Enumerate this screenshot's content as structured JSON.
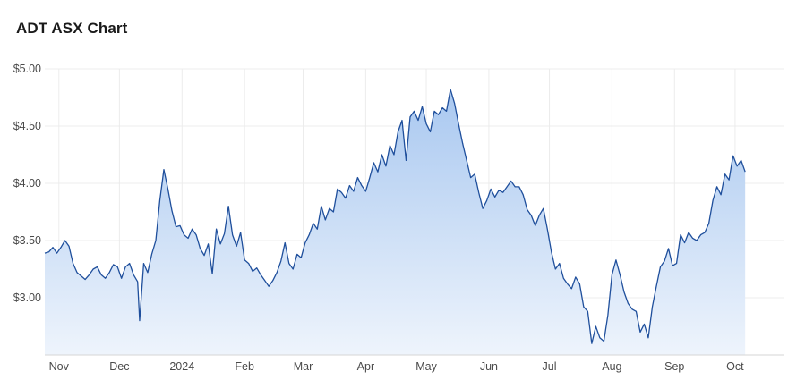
{
  "chart_data": {
    "type": "area",
    "title": "ADT ASX Chart",
    "xlabel": "",
    "ylabel": "",
    "ylim": [
      2.5,
      5.0
    ],
    "y_ticks": [
      {
        "value": 3.0,
        "label": "$3.00"
      },
      {
        "value": 3.5,
        "label": "$3.50"
      },
      {
        "value": 4.0,
        "label": "$4.00"
      },
      {
        "value": 4.5,
        "label": "$4.50"
      },
      {
        "value": 5.0,
        "label": "$5.00"
      }
    ],
    "x_start": "2023-10-25",
    "x_end": "2024-10-25",
    "x_ticks": [
      {
        "date": "2023-11-01",
        "label": "Nov"
      },
      {
        "date": "2023-12-01",
        "label": "Dec"
      },
      {
        "date": "2024-01-01",
        "label": "2024"
      },
      {
        "date": "2024-02-01",
        "label": "Feb"
      },
      {
        "date": "2024-03-01",
        "label": "Mar"
      },
      {
        "date": "2024-04-01",
        "label": "Apr"
      },
      {
        "date": "2024-05-01",
        "label": "May"
      },
      {
        "date": "2024-06-01",
        "label": "Jun"
      },
      {
        "date": "2024-07-01",
        "label": "Jul"
      },
      {
        "date": "2024-08-01",
        "label": "Aug"
      },
      {
        "date": "2024-09-01",
        "label": "Sep"
      },
      {
        "date": "2024-10-01",
        "label": "Oct"
      }
    ],
    "grid": true,
    "legend": "none",
    "colors": {
      "line": "#1f4f9c",
      "fill_top": "#a9c8f0",
      "fill_bottom": "#eef4fc",
      "grid": "#ececec"
    },
    "series": [
      {
        "points": [
          [
            "2023-10-25",
            3.39
          ],
          [
            "2023-10-27",
            3.4
          ],
          [
            "2023-10-29",
            3.44
          ],
          [
            "2023-10-31",
            3.39
          ],
          [
            "2023-11-02",
            3.44
          ],
          [
            "2023-11-04",
            3.5
          ],
          [
            "2023-11-06",
            3.45
          ],
          [
            "2023-11-08",
            3.3
          ],
          [
            "2023-11-10",
            3.22
          ],
          [
            "2023-11-12",
            3.19
          ],
          [
            "2023-11-14",
            3.16
          ],
          [
            "2023-11-16",
            3.2
          ],
          [
            "2023-11-18",
            3.25
          ],
          [
            "2023-11-20",
            3.27
          ],
          [
            "2023-11-22",
            3.2
          ],
          [
            "2023-11-24",
            3.17
          ],
          [
            "2023-11-26",
            3.22
          ],
          [
            "2023-11-28",
            3.29
          ],
          [
            "2023-11-30",
            3.27
          ],
          [
            "2023-12-02",
            3.17
          ],
          [
            "2023-12-04",
            3.27
          ],
          [
            "2023-12-06",
            3.3
          ],
          [
            "2023-12-08",
            3.2
          ],
          [
            "2023-12-10",
            3.14
          ],
          [
            "2023-12-11",
            2.8
          ],
          [
            "2023-12-13",
            3.3
          ],
          [
            "2023-12-15",
            3.22
          ],
          [
            "2023-12-17",
            3.38
          ],
          [
            "2023-12-19",
            3.5
          ],
          [
            "2023-12-21",
            3.85
          ],
          [
            "2023-12-23",
            4.12
          ],
          [
            "2023-12-25",
            3.95
          ],
          [
            "2023-12-27",
            3.76
          ],
          [
            "2023-12-29",
            3.62
          ],
          [
            "2023-12-31",
            3.63
          ],
          [
            "2024-01-02",
            3.55
          ],
          [
            "2024-01-04",
            3.52
          ],
          [
            "2024-01-06",
            3.6
          ],
          [
            "2024-01-08",
            3.55
          ],
          [
            "2024-01-10",
            3.43
          ],
          [
            "2024-01-12",
            3.37
          ],
          [
            "2024-01-14",
            3.47
          ],
          [
            "2024-01-16",
            3.21
          ],
          [
            "2024-01-18",
            3.6
          ],
          [
            "2024-01-20",
            3.47
          ],
          [
            "2024-01-22",
            3.56
          ],
          [
            "2024-01-24",
            3.8
          ],
          [
            "2024-01-26",
            3.55
          ],
          [
            "2024-01-28",
            3.45
          ],
          [
            "2024-01-30",
            3.57
          ],
          [
            "2024-02-01",
            3.33
          ],
          [
            "2024-02-03",
            3.3
          ],
          [
            "2024-02-05",
            3.23
          ],
          [
            "2024-02-07",
            3.26
          ],
          [
            "2024-02-09",
            3.2
          ],
          [
            "2024-02-11",
            3.15
          ],
          [
            "2024-02-13",
            3.1
          ],
          [
            "2024-02-15",
            3.15
          ],
          [
            "2024-02-17",
            3.22
          ],
          [
            "2024-02-19",
            3.32
          ],
          [
            "2024-02-21",
            3.48
          ],
          [
            "2024-02-23",
            3.3
          ],
          [
            "2024-02-25",
            3.25
          ],
          [
            "2024-02-27",
            3.38
          ],
          [
            "2024-02-29",
            3.35
          ],
          [
            "2024-03-02",
            3.48
          ],
          [
            "2024-03-04",
            3.55
          ],
          [
            "2024-03-06",
            3.65
          ],
          [
            "2024-03-08",
            3.6
          ],
          [
            "2024-03-10",
            3.8
          ],
          [
            "2024-03-12",
            3.68
          ],
          [
            "2024-03-14",
            3.78
          ],
          [
            "2024-03-16",
            3.75
          ],
          [
            "2024-03-18",
            3.95
          ],
          [
            "2024-03-20",
            3.92
          ],
          [
            "2024-03-22",
            3.87
          ],
          [
            "2024-03-24",
            3.98
          ],
          [
            "2024-03-26",
            3.93
          ],
          [
            "2024-03-28",
            4.05
          ],
          [
            "2024-03-30",
            3.98
          ],
          [
            "2024-04-01",
            3.93
          ],
          [
            "2024-04-03",
            4.05
          ],
          [
            "2024-04-05",
            4.18
          ],
          [
            "2024-04-07",
            4.1
          ],
          [
            "2024-04-09",
            4.25
          ],
          [
            "2024-04-11",
            4.15
          ],
          [
            "2024-04-13",
            4.33
          ],
          [
            "2024-04-15",
            4.25
          ],
          [
            "2024-04-17",
            4.45
          ],
          [
            "2024-04-19",
            4.55
          ],
          [
            "2024-04-21",
            4.2
          ],
          [
            "2024-04-23",
            4.58
          ],
          [
            "2024-04-25",
            4.63
          ],
          [
            "2024-04-27",
            4.55
          ],
          [
            "2024-04-29",
            4.67
          ],
          [
            "2024-05-01",
            4.52
          ],
          [
            "2024-05-03",
            4.45
          ],
          [
            "2024-05-05",
            4.63
          ],
          [
            "2024-05-07",
            4.6
          ],
          [
            "2024-05-09",
            4.66
          ],
          [
            "2024-05-11",
            4.63
          ],
          [
            "2024-05-13",
            4.82
          ],
          [
            "2024-05-15",
            4.7
          ],
          [
            "2024-05-17",
            4.52
          ],
          [
            "2024-05-19",
            4.35
          ],
          [
            "2024-05-21",
            4.2
          ],
          [
            "2024-05-23",
            4.05
          ],
          [
            "2024-05-25",
            4.08
          ],
          [
            "2024-05-27",
            3.92
          ],
          [
            "2024-05-29",
            3.78
          ],
          [
            "2024-05-31",
            3.85
          ],
          [
            "2024-06-02",
            3.95
          ],
          [
            "2024-06-04",
            3.88
          ],
          [
            "2024-06-06",
            3.94
          ],
          [
            "2024-06-08",
            3.92
          ],
          [
            "2024-06-10",
            3.97
          ],
          [
            "2024-06-12",
            4.02
          ],
          [
            "2024-06-14",
            3.97
          ],
          [
            "2024-06-16",
            3.97
          ],
          [
            "2024-06-18",
            3.9
          ],
          [
            "2024-06-20",
            3.77
          ],
          [
            "2024-06-22",
            3.72
          ],
          [
            "2024-06-24",
            3.63
          ],
          [
            "2024-06-26",
            3.72
          ],
          [
            "2024-06-28",
            3.78
          ],
          [
            "2024-06-30",
            3.6
          ],
          [
            "2024-07-02",
            3.4
          ],
          [
            "2024-07-04",
            3.25
          ],
          [
            "2024-07-06",
            3.3
          ],
          [
            "2024-07-08",
            3.17
          ],
          [
            "2024-07-10",
            3.12
          ],
          [
            "2024-07-12",
            3.08
          ],
          [
            "2024-07-14",
            3.18
          ],
          [
            "2024-07-16",
            3.12
          ],
          [
            "2024-07-18",
            2.92
          ],
          [
            "2024-07-20",
            2.88
          ],
          [
            "2024-07-22",
            2.6
          ],
          [
            "2024-07-24",
            2.75
          ],
          [
            "2024-07-26",
            2.65
          ],
          [
            "2024-07-28",
            2.62
          ],
          [
            "2024-07-30",
            2.85
          ],
          [
            "2024-08-01",
            3.2
          ],
          [
            "2024-08-03",
            3.33
          ],
          [
            "2024-08-05",
            3.2
          ],
          [
            "2024-08-07",
            3.05
          ],
          [
            "2024-08-09",
            2.95
          ],
          [
            "2024-08-11",
            2.9
          ],
          [
            "2024-08-13",
            2.88
          ],
          [
            "2024-08-15",
            2.7
          ],
          [
            "2024-08-17",
            2.77
          ],
          [
            "2024-08-19",
            2.65
          ],
          [
            "2024-08-21",
            2.92
          ],
          [
            "2024-08-23",
            3.1
          ],
          [
            "2024-08-25",
            3.27
          ],
          [
            "2024-08-27",
            3.32
          ],
          [
            "2024-08-29",
            3.43
          ],
          [
            "2024-08-31",
            3.28
          ],
          [
            "2024-09-02",
            3.3
          ],
          [
            "2024-09-04",
            3.55
          ],
          [
            "2024-09-06",
            3.48
          ],
          [
            "2024-09-08",
            3.57
          ],
          [
            "2024-09-10",
            3.52
          ],
          [
            "2024-09-12",
            3.5
          ],
          [
            "2024-09-14",
            3.55
          ],
          [
            "2024-09-16",
            3.57
          ],
          [
            "2024-09-18",
            3.65
          ],
          [
            "2024-09-20",
            3.85
          ],
          [
            "2024-09-22",
            3.97
          ],
          [
            "2024-09-24",
            3.9
          ],
          [
            "2024-09-26",
            4.08
          ],
          [
            "2024-09-28",
            4.03
          ],
          [
            "2024-09-30",
            4.24
          ],
          [
            "2024-10-02",
            4.15
          ],
          [
            "2024-10-04",
            4.2
          ],
          [
            "2024-10-06",
            4.1
          ]
        ]
      }
    ]
  }
}
